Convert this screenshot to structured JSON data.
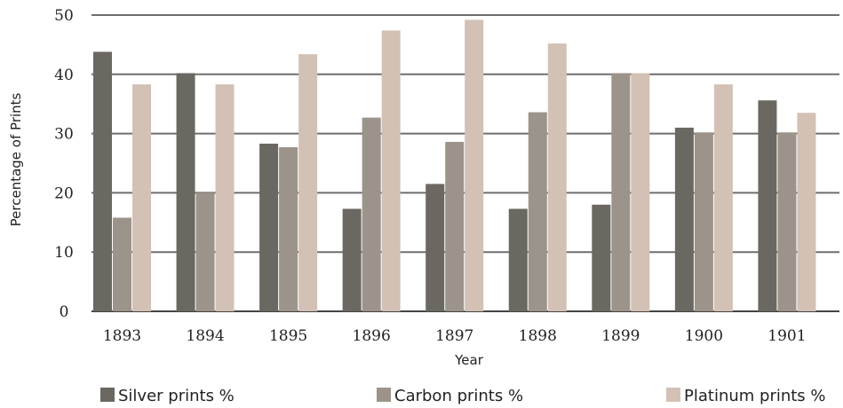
{
  "chart_data": {
    "type": "bar",
    "categories": [
      "1893",
      "1894",
      "1895",
      "1896",
      "1897",
      "1898",
      "1899",
      "1900",
      "1901"
    ],
    "series": [
      {
        "name": "Silver prints %",
        "color": "#6b6862",
        "values": [
          43.8,
          40.2,
          28.3,
          17.3,
          21.5,
          17.3,
          18.0,
          31.0,
          35.6
        ]
      },
      {
        "name": "Carbon prints %",
        "color": "#9c938a",
        "values": [
          15.8,
          20.0,
          27.7,
          32.7,
          28.6,
          33.6,
          40.2,
          30.2,
          30.2
        ]
      },
      {
        "name": "Platinum prints %",
        "color": "#d3c1b5",
        "values": [
          38.3,
          38.3,
          43.4,
          47.4,
          49.2,
          45.2,
          40.2,
          38.3,
          33.5
        ]
      }
    ],
    "xlabel": "Year",
    "ylabel": "Percentage of Prints",
    "ylim": [
      0,
      50
    ],
    "yticks": [
      0,
      10,
      20,
      30,
      40,
      50
    ],
    "ytick_labels": [
      "0",
      "10",
      "20",
      "30",
      "40",
      "50"
    ],
    "grid": true,
    "legend_position": "bottom"
  }
}
